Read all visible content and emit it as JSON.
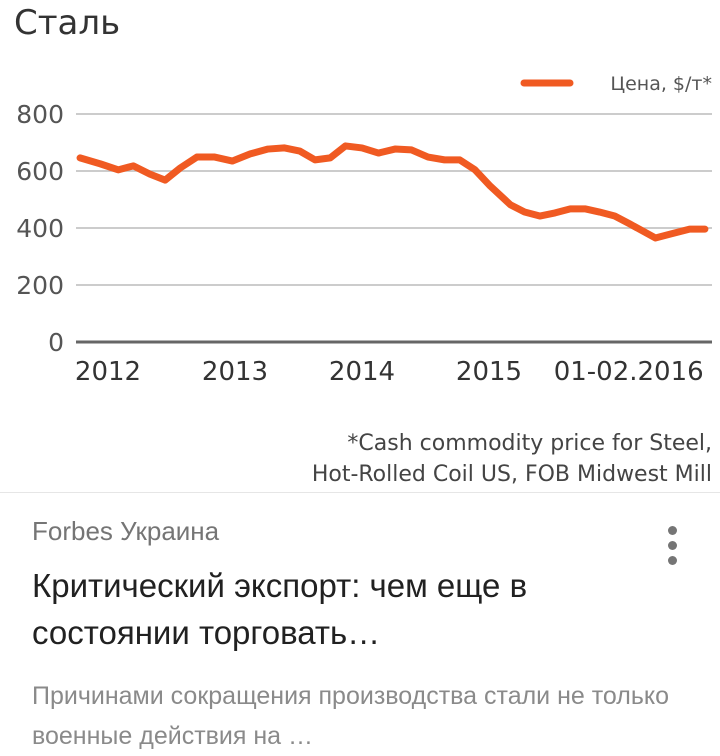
{
  "chart_data": {
    "type": "line",
    "title": "Сталь",
    "legend": [
      "Цена, $/т*"
    ],
    "legend_position": "top-right",
    "ylim": [
      0,
      800
    ],
    "yticks": [
      "0",
      "200",
      "400",
      "600",
      "800"
    ],
    "ytick_values": [
      0,
      200,
      400,
      600,
      800
    ],
    "xticks": [
      "2012",
      "2013",
      "2014",
      "2015",
      "01-02.2016"
    ],
    "xtick_values": [
      2012,
      2013,
      2014,
      2015,
      2016.1
    ],
    "grid": true,
    "color": "#f05a22",
    "footnote": [
      "*Cash commodity price for Steel,",
      "Hot-Rolled Coil US, FOB Midwest Mill"
    ],
    "series": [
      {
        "name": "Цена, $/т*",
        "x": [
          2011.78,
          2011.94,
          2012.08,
          2012.2,
          2012.33,
          2012.45,
          2012.57,
          2012.7,
          2012.84,
          2012.98,
          2013.12,
          2013.26,
          2013.39,
          2013.51,
          2013.63,
          2013.75,
          2013.87,
          2014.0,
          2014.13,
          2014.26,
          2014.39,
          2014.52,
          2014.65,
          2014.77,
          2014.89,
          2015.01,
          2015.17,
          2015.28,
          2015.4,
          2015.52,
          2015.64,
          2015.76,
          2015.87,
          2015.99,
          2016.11,
          2016.31,
          2016.43,
          2016.58,
          2016.7
        ],
        "values": [
          646,
          625,
          604,
          618,
          589,
          568,
          611,
          649,
          649,
          635,
          660,
          677,
          681,
          670,
          639,
          646,
          688,
          681,
          663,
          677,
          674,
          649,
          639,
          639,
          604,
          547,
          481,
          456,
          442,
          453,
          467,
          467,
          456,
          442,
          414,
          365,
          379,
          396,
          396
        ]
      }
    ]
  },
  "card": {
    "source": "Forbes Украина",
    "title": "Критический экспорт: чем еще в состоянии торговать…",
    "snippet": "Причинами сокращения производства стали не только военные действия на …",
    "menu_icon": "more-vert-icon"
  }
}
